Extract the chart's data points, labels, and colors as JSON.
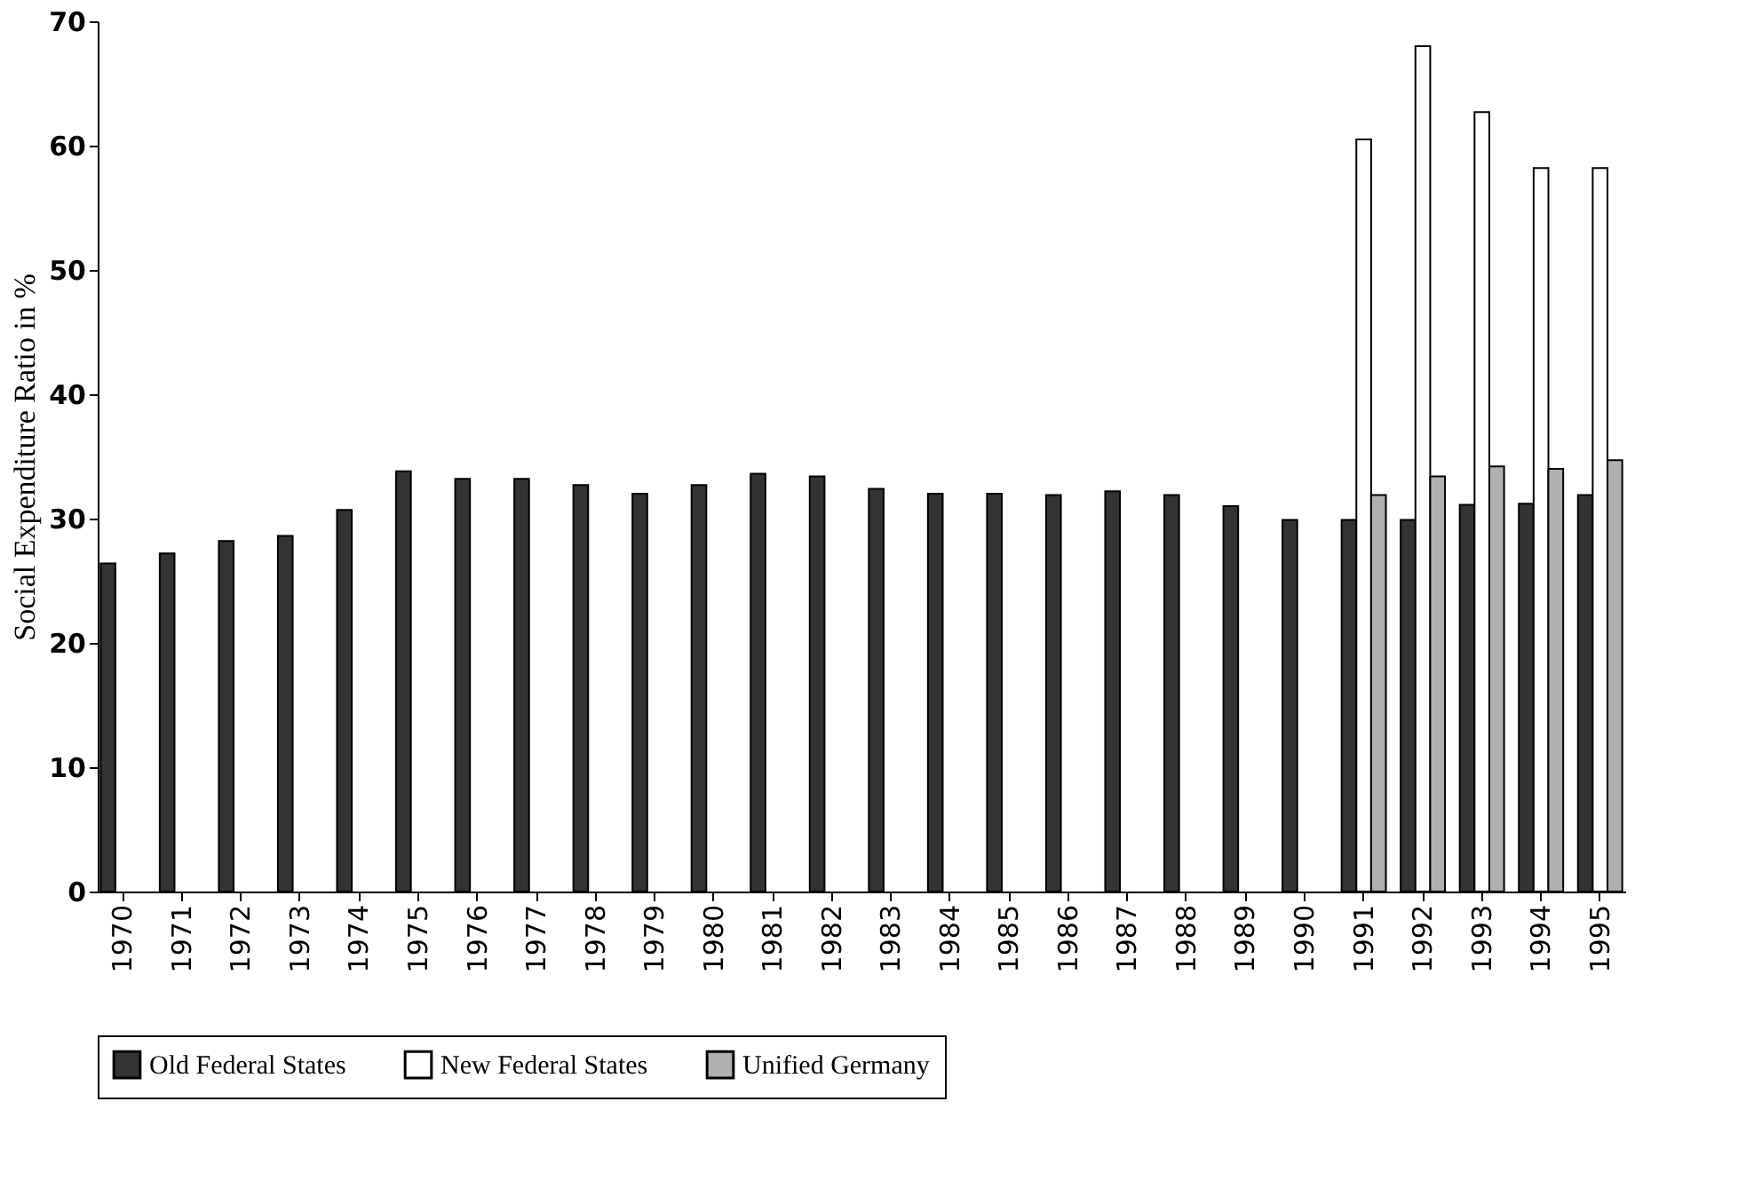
{
  "chart_data": {
    "type": "bar",
    "ylabel": "Social Expenditure Ratio in %",
    "categories": [
      "1970",
      "1971",
      "1972",
      "1973",
      "1974",
      "1975",
      "1976",
      "1977",
      "1978",
      "1979",
      "1980",
      "1981",
      "1982",
      "1983",
      "1984",
      "1985",
      "1986",
      "1987",
      "1988",
      "1989",
      "1990",
      "1991",
      "1992",
      "1993",
      "1994",
      "1995"
    ],
    "series": [
      {
        "name": "Old Federal States",
        "color": "#333333",
        "values": [
          26.4,
          27.2,
          28.2,
          28.6,
          30.7,
          33.8,
          33.2,
          33.2,
          32.7,
          32.0,
          32.7,
          33.6,
          33.4,
          32.4,
          32.0,
          32.0,
          31.9,
          32.2,
          31.9,
          31.0,
          29.9,
          29.9,
          29.9,
          31.1,
          31.2,
          31.9
        ]
      },
      {
        "name": "New Federal States",
        "color": "#ffffff",
        "values": [
          null,
          null,
          null,
          null,
          null,
          null,
          null,
          null,
          null,
          null,
          null,
          null,
          null,
          null,
          null,
          null,
          null,
          null,
          null,
          null,
          null,
          60.5,
          68.0,
          62.7,
          58.2,
          58.2
        ]
      },
      {
        "name": "Unified Germany",
        "color": "#b0b0b0",
        "values": [
          null,
          null,
          null,
          null,
          null,
          null,
          null,
          null,
          null,
          null,
          null,
          null,
          null,
          null,
          null,
          null,
          null,
          null,
          null,
          null,
          null,
          31.9,
          33.4,
          34.2,
          34.0,
          34.7
        ]
      }
    ],
    "ylim": [
      0,
      70
    ],
    "yticks": [
      0,
      10,
      20,
      30,
      40,
      50,
      60,
      70
    ],
    "grid": false,
    "legend": "bottom"
  }
}
